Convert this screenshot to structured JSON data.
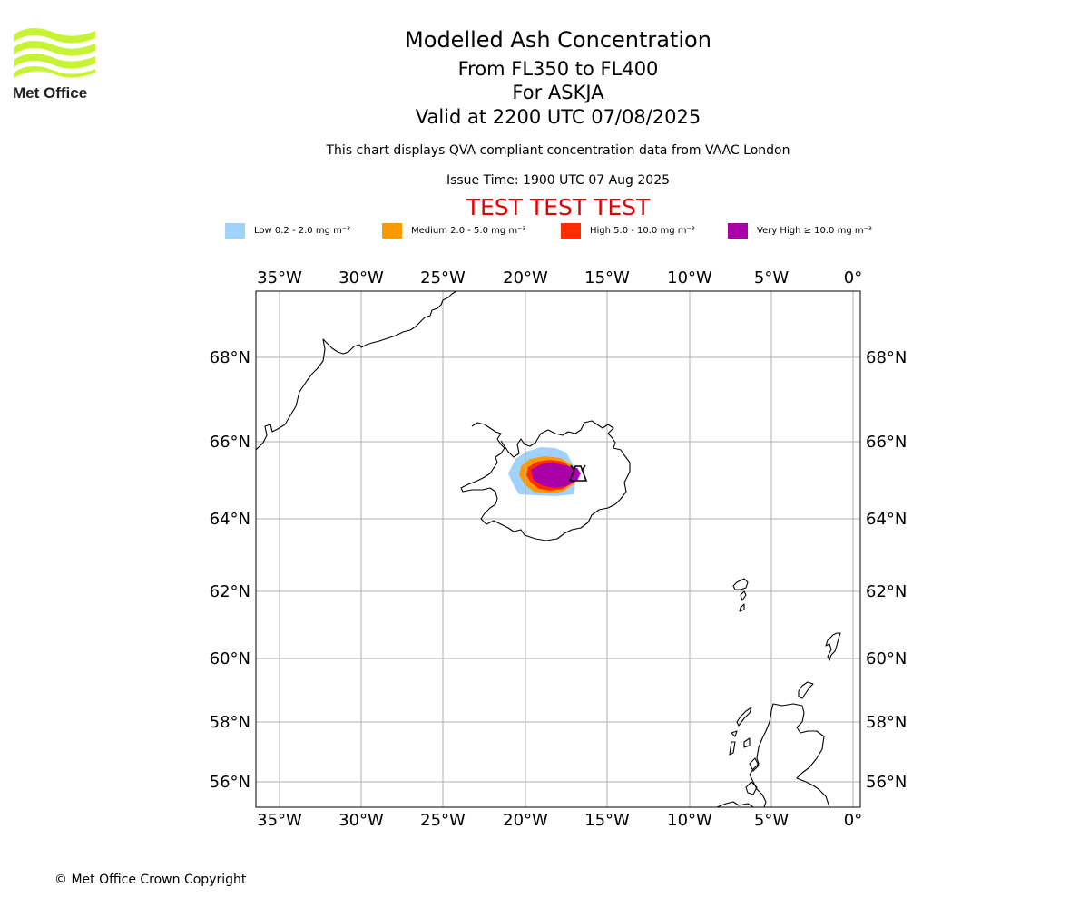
{
  "logo": {
    "text": "Met Office",
    "color": "#c6f432",
    "text_color": "#222222"
  },
  "title": {
    "main": "Modelled Ash Concentration",
    "level": "From FL350 to FL400",
    "volcano": "For ASKJA",
    "valid": "Valid at 2200 UTC 07/08/2025"
  },
  "subtitle": "This chart displays QVA compliant concentration data from VAAC London",
  "issue_time": "Issue Time: 1900 UTC 07 Aug 2025",
  "test_banner": "TEST TEST TEST",
  "legend": [
    {
      "label": "Low 0.2 - 2.0 mg m⁻³",
      "color": "#a0d2ff"
    },
    {
      "label": "Medium 2.0 - 5.0 mg m⁻³",
      "color": "#ff9900"
    },
    {
      "label": "High 5.0 - 10.0 mg m⁻³",
      "color": "#ff2c00"
    },
    {
      "label": "Very High ≥ 10.0 mg m⁻³",
      "color": "#aa00aa"
    }
  ],
  "map": {
    "lon_ticks": [
      "35°W",
      "30°W",
      "25°W",
      "20°W",
      "15°W",
      "10°W",
      "5°W",
      "0°"
    ],
    "lat_ticks": [
      "68°N",
      "66°N",
      "64°N",
      "62°N",
      "60°N",
      "58°N",
      "56°N"
    ],
    "volcano_marker": "volcano-icon",
    "grid": true
  },
  "copyright": "© Met Office Crown Copyright"
}
